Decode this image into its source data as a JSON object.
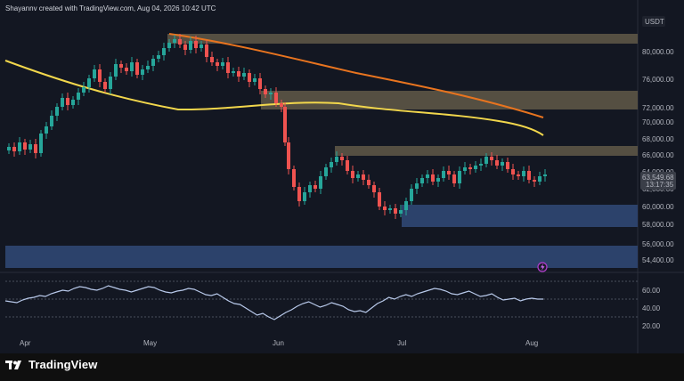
{
  "header": {
    "attribution": "Shayannv created with TradingView.com, Aug 04, 2026 10:42 UTC"
  },
  "price_axis": {
    "currency": "USDT",
    "ticks": [
      "80,000.00",
      "76,000.00",
      "72,000.00",
      "70,000.00",
      "68,000.00",
      "66,000.00",
      "64,000.00",
      "62,000.00",
      "60,000.00",
      "58,000.00",
      "56,000.00",
      "54,400.00"
    ],
    "last_price": "63,549.68",
    "countdown": "13:17:35"
  },
  "time_axis": {
    "ticks": [
      "Apr",
      "May",
      "Jun",
      "Jul",
      "Aug"
    ]
  },
  "rsi_axis": {
    "ticks": [
      "60.00",
      "40.00",
      "20.00"
    ]
  },
  "footer": {
    "brand": "TradingView"
  },
  "colors": {
    "background": "#131722",
    "bull": "#26a69a",
    "bear": "#ef5350",
    "ma_fast": "#f2d74c",
    "ma_slow": "#e8741f",
    "supply_zone": "#5d5546",
    "demand_zone": "#2d4470",
    "rsi_line": "#b8c9ea"
  },
  "icons": {
    "alert_marker": "lightning-icon"
  },
  "chart_data": {
    "type": "candlestick",
    "symbol_quote": "USDT",
    "x_ticks": [
      "Apr",
      "May",
      "Jun",
      "Jul",
      "Aug"
    ],
    "last_price": 63549.68,
    "moving_averages": [
      {
        "color": "#f2d74c",
        "points": [
          [
            "Mar 28",
            77600
          ],
          [
            "Apr 15",
            75200
          ],
          [
            "May 1",
            73600
          ],
          [
            "May 15",
            73300
          ],
          [
            "Jun 1",
            73000
          ],
          [
            "Jun 15",
            72800
          ],
          [
            "Jul 1",
            72000
          ],
          [
            "Jul 15",
            71000
          ],
          [
            "Aug 1",
            69800
          ],
          [
            "Aug 6",
            68200
          ]
        ]
      },
      {
        "color": "#e8741f",
        "points": [
          [
            "May 5",
            83100
          ],
          [
            "May 20",
            81800
          ],
          [
            "Jun 5",
            79800
          ],
          [
            "Jun 20",
            77800
          ],
          [
            "Jul 5",
            76000
          ],
          [
            "Jul 20",
            74200
          ],
          [
            "Aug 1",
            72500
          ],
          [
            "Aug 6",
            70900
          ]
        ]
      }
    ],
    "zones": [
      {
        "kind": "supply",
        "from": "May 1",
        "to": "Aug 10",
        "low": 81500,
        "high": 82700
      },
      {
        "kind": "supply",
        "from": "Jun 1",
        "to": "Aug 10",
        "low": 72000,
        "high": 74600
      },
      {
        "kind": "supply",
        "from": "Jun 17",
        "to": "Aug 10",
        "low": 65600,
        "high": 66800
      },
      {
        "kind": "demand",
        "from": "Jul 1",
        "to": "Aug 10",
        "low": 58200,
        "high": 60600
      },
      {
        "kind": "demand",
        "from": "Mar 28",
        "to": "Aug 10",
        "low": 53800,
        "high": 56000
      }
    ],
    "rsi": {
      "levels": [
        70,
        50,
        30
      ],
      "values": [
        48,
        47,
        46,
        49,
        51,
        52,
        54,
        53,
        56,
        58,
        60,
        59,
        62,
        64,
        63,
        61,
        60,
        62,
        65,
        63,
        61,
        60,
        58,
        60,
        62,
        64,
        63,
        60,
        58,
        57,
        59,
        60,
        62,
        61,
        58,
        55,
        54,
        56,
        52,
        48,
        45,
        44,
        40,
        36,
        32,
        34,
        30,
        27,
        31,
        35,
        38,
        42,
        45,
        47,
        44,
        41,
        43,
        46,
        44,
        42,
        38,
        36,
        37,
        35,
        40,
        45,
        48,
        52,
        50,
        53,
        55,
        53,
        56,
        58,
        60,
        62,
        61,
        59,
        56,
        55,
        57,
        59,
        56,
        53,
        54,
        56,
        52,
        49,
        50,
        51,
        48,
        50,
        51,
        50,
        50
      ]
    }
  }
}
